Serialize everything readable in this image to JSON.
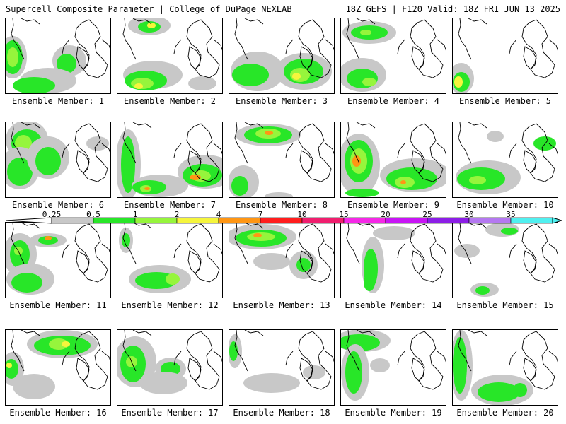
{
  "header": {
    "left": "Supercell Composite Parameter | College of DuPage NEXLAB",
    "right": "18Z GEFS | F120 Valid: 18Z FRI JUN 13 2025"
  },
  "members": [
    {
      "label": "Ensemble Member: 1"
    },
    {
      "label": "Ensemble Member: 2"
    },
    {
      "label": "Ensemble Member: 3"
    },
    {
      "label": "Ensemble Member: 4"
    },
    {
      "label": "Ensemble Member: 5"
    },
    {
      "label": "Ensemble Member: 6"
    },
    {
      "label": "Ensemble Member: 7"
    },
    {
      "label": "Ensemble Member: 8"
    },
    {
      "label": "Ensemble Member: 9"
    },
    {
      "label": "Ensemble Member: 10"
    },
    {
      "label": "Ensemble Member: 11"
    },
    {
      "label": "Ensemble Member: 12"
    },
    {
      "label": "Ensemble Member: 13"
    },
    {
      "label": "Ensemble Member: 14"
    },
    {
      "label": "Ensemble Member: 15"
    },
    {
      "label": "Ensemble Member: 16"
    },
    {
      "label": "Ensemble Member: 17"
    },
    {
      "label": "Ensemble Member: 18"
    },
    {
      "label": "Ensemble Member: 19"
    },
    {
      "label": "Ensemble Member: 20"
    }
  ],
  "colorbar": {
    "levels": [
      "0.25",
      "0.5",
      "1",
      "2",
      "4",
      "7",
      "10",
      "15",
      "20",
      "25",
      "30",
      "35"
    ],
    "colors": [
      "#c8c8c8",
      "#28e628",
      "#96f53c",
      "#f5f53c",
      "#ff9614",
      "#ff1e1e",
      "#f01e6e",
      "#f528e6",
      "#c814f5",
      "#8c1ee6",
      "#b478f0",
      "#50f0f0"
    ]
  },
  "legend_colors": {
    "gray": "#c8c8c8",
    "green": "#28e628",
    "lime": "#96f53c",
    "yellow": "#f5f53c",
    "orange": "#ff9614",
    "red": "#ff1e1e"
  }
}
